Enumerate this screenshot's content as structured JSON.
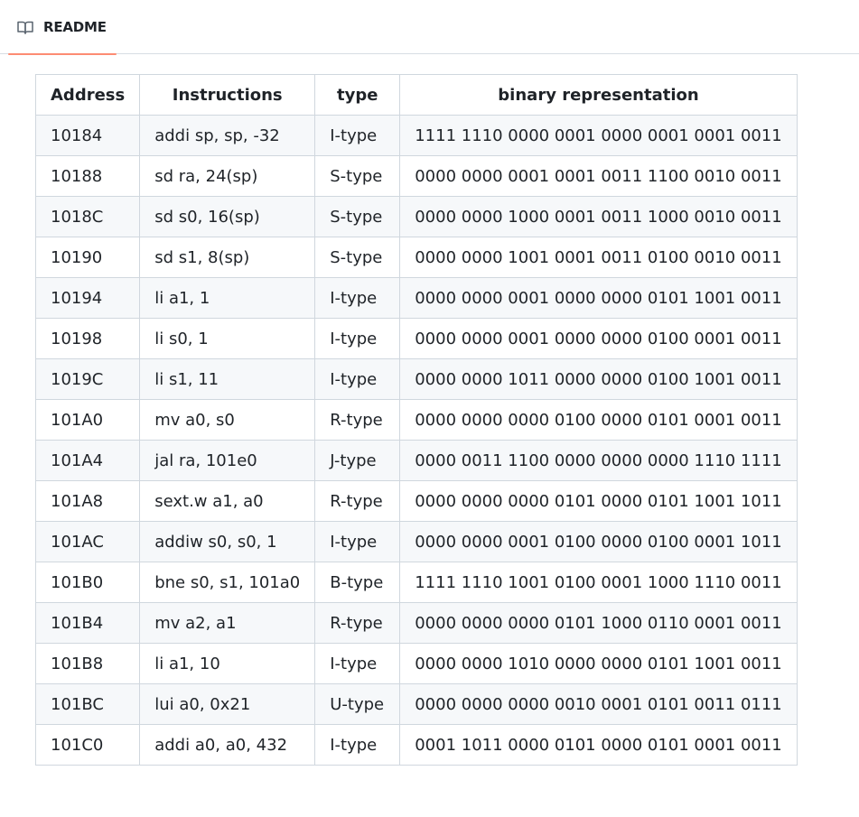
{
  "tab": {
    "icon": "book-icon",
    "label": "README",
    "active_color": "#fd8c73"
  },
  "table": {
    "headers": [
      "Address",
      "Instructions",
      "type",
      "binary representation"
    ],
    "rows": [
      [
        "10184",
        "addi sp, sp, -32",
        "I-type",
        "1111 1110 0000 0001 0000 0001 0001 0011"
      ],
      [
        "10188",
        "sd ra, 24(sp)",
        "S-type",
        "0000 0000 0001 0001 0011 1100 0010 0011"
      ],
      [
        "1018C",
        "sd s0, 16(sp)",
        "S-type",
        "0000 0000 1000 0001 0011 1000 0010 0011"
      ],
      [
        "10190",
        "sd s1, 8(sp)",
        "S-type",
        "0000 0000 1001 0001 0011 0100 0010 0011"
      ],
      [
        "10194",
        "li a1, 1",
        "I-type",
        "0000 0000 0001 0000 0000 0101 1001 0011"
      ],
      [
        "10198",
        "li s0, 1",
        "I-type",
        "0000 0000 0001 0000 0000 0100 0001 0011"
      ],
      [
        "1019C",
        "li s1, 11",
        "I-type",
        "0000 0000 1011 0000 0000 0100 1001 0011"
      ],
      [
        "101A0",
        "mv a0, s0",
        "R-type",
        "0000 0000 0000 0100 0000 0101 0001 0011"
      ],
      [
        "101A4",
        "jal ra, 101e0",
        "J-type",
        "0000 0011 1100 0000 0000 0000 1110 1111"
      ],
      [
        "101A8",
        "sext.w a1, a0",
        "R-type",
        "0000 0000 0000 0101 0000 0101 1001 1011"
      ],
      [
        "101AC",
        "addiw s0, s0, 1",
        "I-type",
        "0000 0000 0001 0100 0000 0100 0001 1011"
      ],
      [
        "101B0",
        "bne s0, s1, 101a0",
        "B-type",
        "1111 1110 1001 0100 0001 1000 1110 0011"
      ],
      [
        "101B4",
        "mv a2, a1",
        "R-type",
        "0000 0000 0000 0101 1000 0110 0001 0011"
      ],
      [
        "101B8",
        "li a1, 10",
        "I-type",
        "0000 0000 1010 0000 0000 0101 1001 0011"
      ],
      [
        "101BC",
        "lui a0, 0x21",
        "U-type",
        "0000 0000 0000 0010 0001 0101 0011 0111"
      ],
      [
        "101C0",
        "addi a0, a0, 432",
        "I-type",
        "0001 1011 0000 0101 0000 0101 0001 0011"
      ]
    ]
  }
}
